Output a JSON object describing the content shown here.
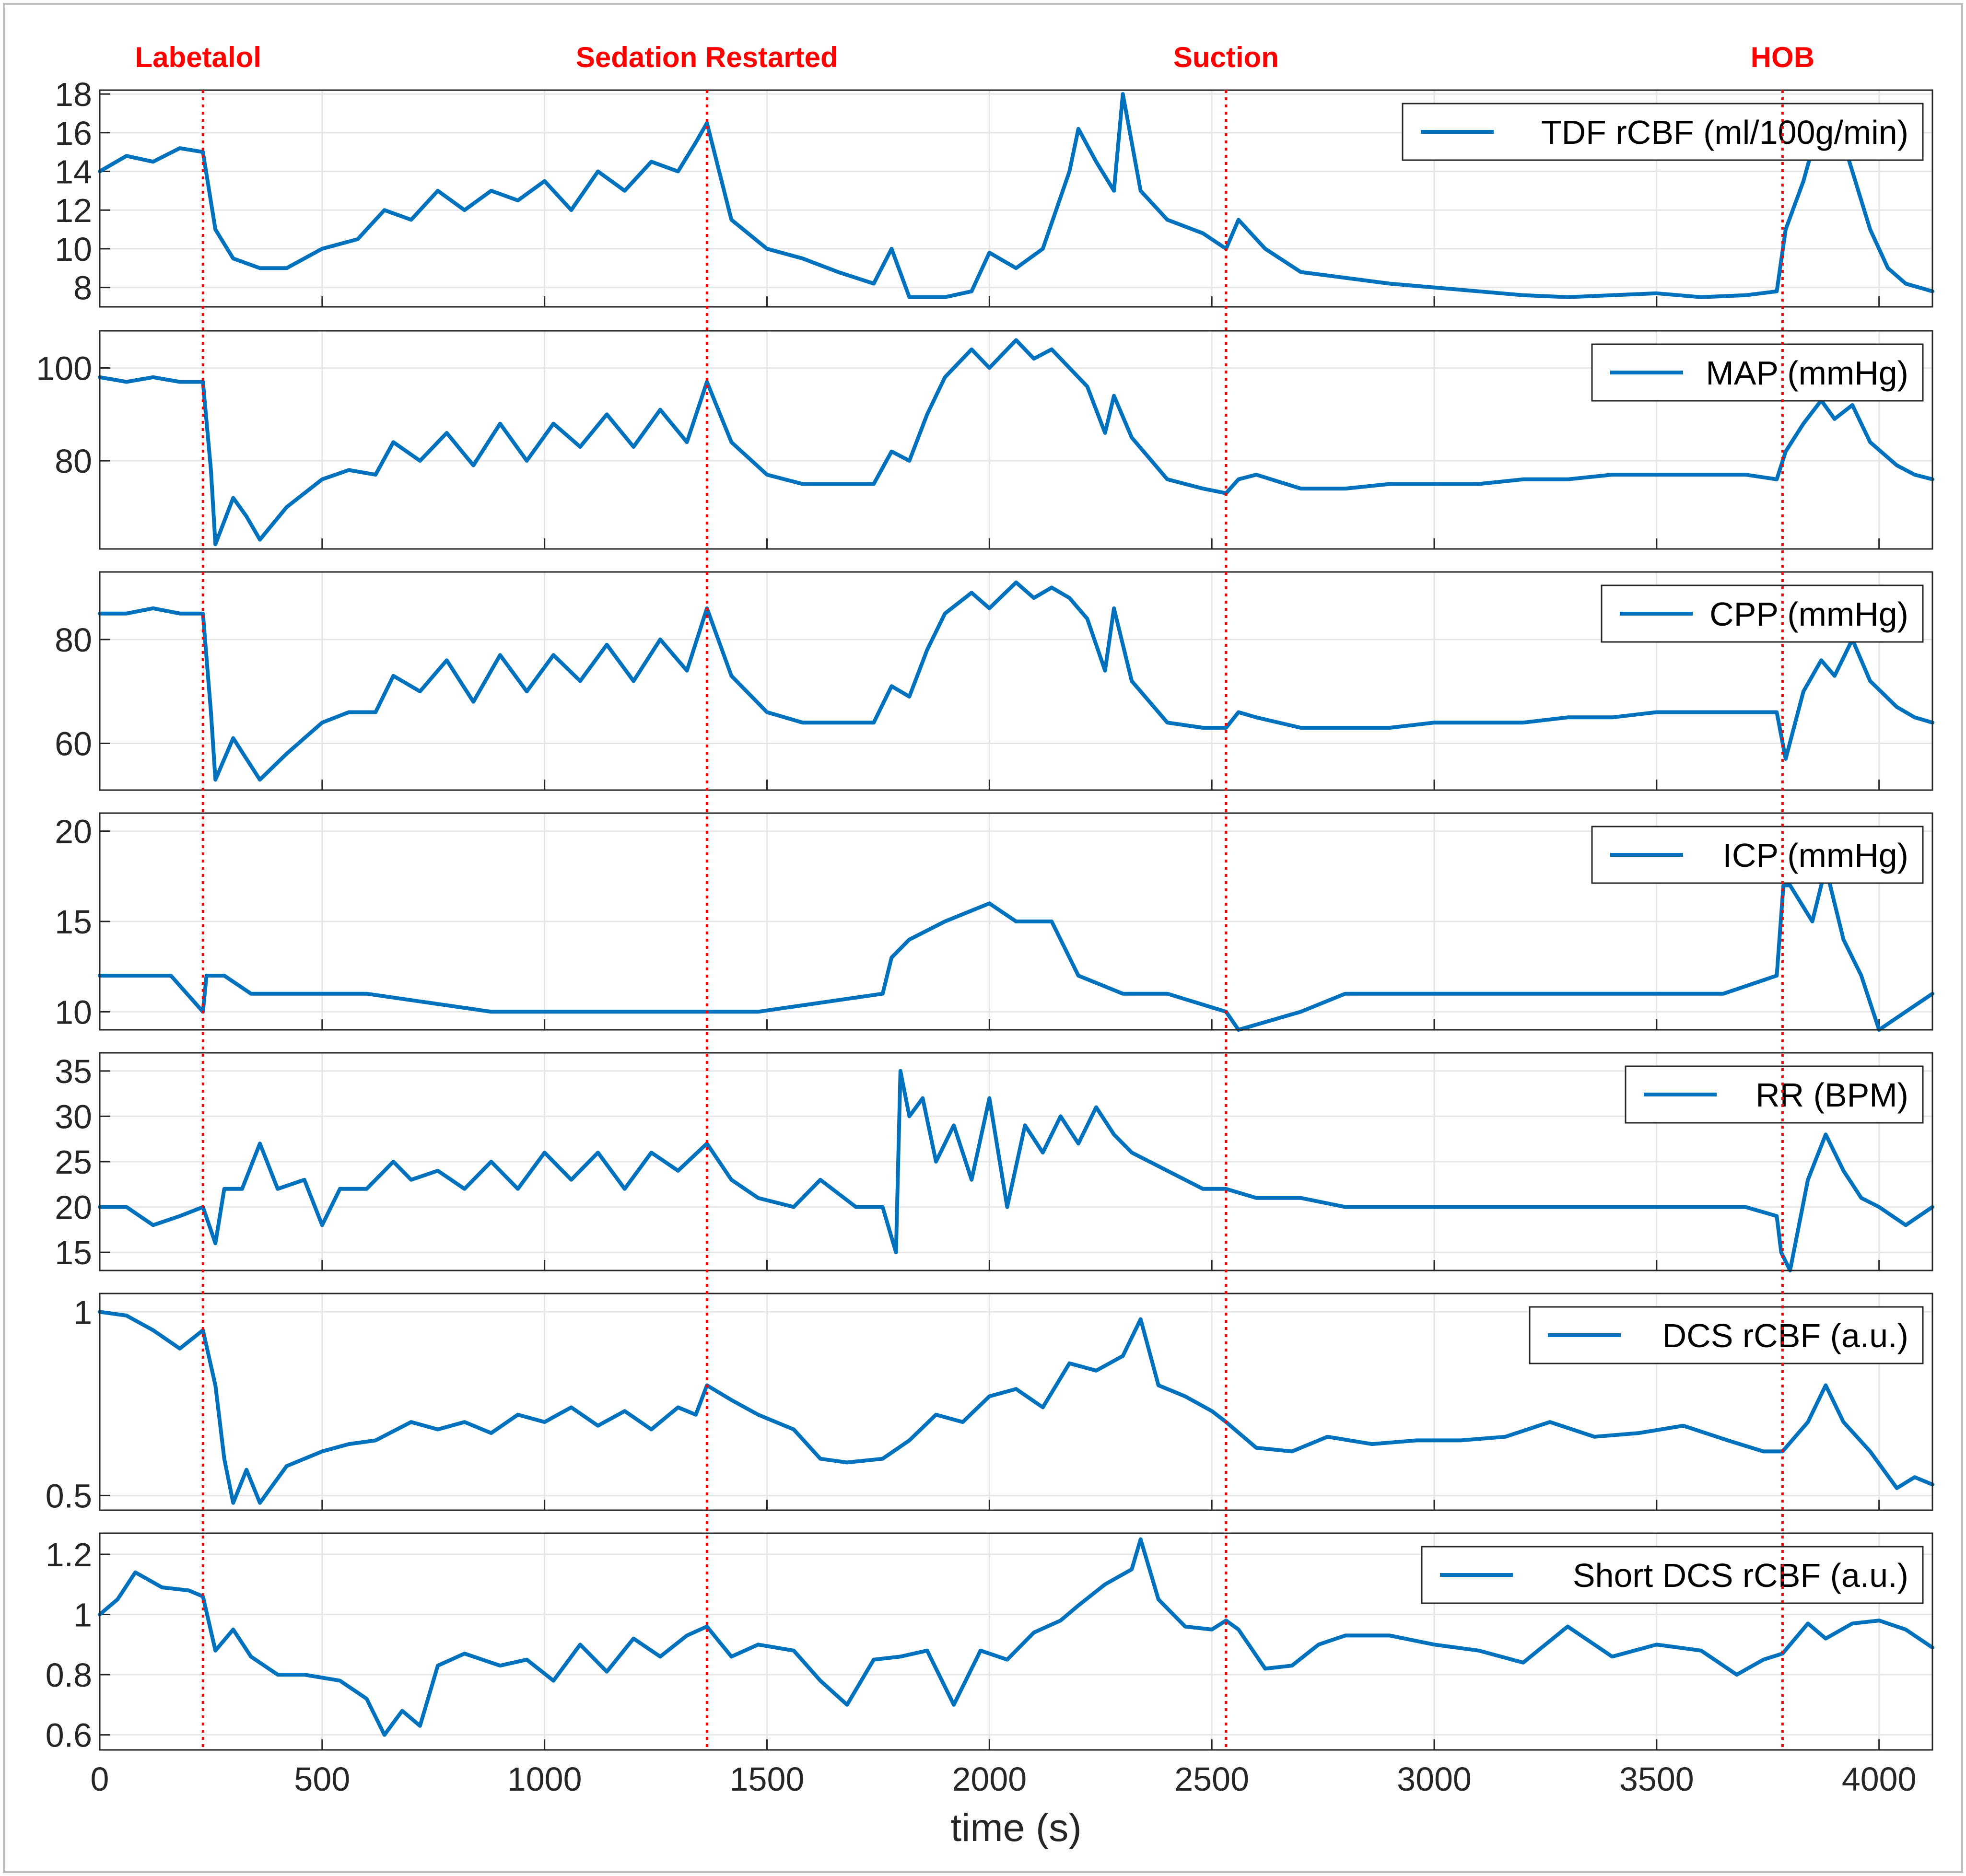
{
  "chart_data": {
    "type": "line",
    "xlabel": "time (s)",
    "xlim": [
      0,
      4120
    ],
    "xticks": [
      0,
      500,
      1000,
      1500,
      2000,
      2500,
      3000,
      3500,
      4000
    ],
    "line_color": "#0072bd",
    "event_color": "#ff0000",
    "events": [
      {
        "label": "Labetalol",
        "x": 232
      },
      {
        "label": "Sedation Restarted",
        "x": 1365
      },
      {
        "label": "Suction",
        "x": 2532
      },
      {
        "label": "HOB",
        "x": 3783
      }
    ],
    "panels": [
      {
        "legend": "TDF rCBF (ml/100g/min)",
        "ylim": [
          7,
          18.2
        ],
        "yticks": [
          8,
          10,
          12,
          14,
          16,
          18
        ],
        "x": [
          0,
          60,
          120,
          180,
          232,
          260,
          300,
          360,
          420,
          500,
          580,
          640,
          700,
          760,
          820,
          880,
          940,
          1000,
          1060,
          1120,
          1180,
          1240,
          1300,
          1340,
          1365,
          1420,
          1500,
          1580,
          1660,
          1740,
          1780,
          1820,
          1900,
          1960,
          2000,
          2060,
          2120,
          2180,
          2200,
          2240,
          2280,
          2300,
          2340,
          2400,
          2480,
          2532,
          2560,
          2620,
          2700,
          2800,
          2900,
          3000,
          3100,
          3200,
          3300,
          3400,
          3500,
          3600,
          3700,
          3770,
          3790,
          3830,
          3860,
          3900,
          3940,
          3980,
          4020,
          4060,
          4120
        ],
        "values": [
          14,
          14.8,
          14.5,
          15.2,
          15,
          11,
          9.5,
          9,
          9,
          10,
          10.5,
          12,
          11.5,
          13,
          12,
          13,
          12.5,
          13.5,
          12,
          14,
          13,
          14.5,
          14,
          15.5,
          16.5,
          11.5,
          10,
          9.5,
          8.8,
          8.2,
          10,
          7.5,
          7.5,
          7.8,
          9.8,
          9,
          10,
          14,
          16.2,
          14.5,
          13,
          18,
          13,
          11.5,
          10.8,
          10,
          11.5,
          10,
          8.8,
          8.5,
          8.2,
          8,
          7.8,
          7.6,
          7.5,
          7.6,
          7.7,
          7.5,
          7.6,
          7.8,
          11,
          13.5,
          16,
          17,
          14,
          11,
          9,
          8.2,
          7.8
        ]
      },
      {
        "legend": "MAP (mmHg)",
        "ylim": [
          61,
          108
        ],
        "yticks": [
          80,
          100
        ],
        "x": [
          0,
          60,
          120,
          180,
          232,
          250,
          260,
          300,
          330,
          360,
          420,
          500,
          560,
          620,
          660,
          720,
          780,
          840,
          900,
          960,
          1020,
          1080,
          1140,
          1200,
          1260,
          1320,
          1365,
          1420,
          1500,
          1580,
          1660,
          1740,
          1780,
          1820,
          1860,
          1900,
          1960,
          2000,
          2060,
          2100,
          2140,
          2180,
          2220,
          2260,
          2280,
          2320,
          2400,
          2480,
          2532,
          2560,
          2600,
          2700,
          2800,
          2900,
          3000,
          3100,
          3200,
          3300,
          3400,
          3500,
          3600,
          3700,
          3770,
          3790,
          3830,
          3870,
          3900,
          3940,
          3980,
          4040,
          4080,
          4120
        ],
        "values": [
          98,
          97,
          98,
          97,
          97,
          78,
          62,
          72,
          68,
          63,
          70,
          76,
          78,
          77,
          84,
          80,
          86,
          79,
          88,
          80,
          88,
          83,
          90,
          83,
          91,
          84,
          97,
          84,
          77,
          75,
          75,
          75,
          82,
          80,
          90,
          98,
          104,
          100,
          106,
          102,
          104,
          100,
          96,
          86,
          94,
          85,
          76,
          74,
          73,
          76,
          77,
          74,
          74,
          75,
          75,
          75,
          76,
          76,
          77,
          77,
          77,
          77,
          76,
          82,
          88,
          93,
          89,
          92,
          84,
          79,
          77,
          76
        ]
      },
      {
        "legend": "CPP (mmHg)",
        "ylim": [
          51,
          93
        ],
        "yticks": [
          60,
          80
        ],
        "x": [
          0,
          60,
          120,
          180,
          232,
          250,
          260,
          300,
          330,
          360,
          420,
          500,
          560,
          620,
          660,
          720,
          780,
          840,
          900,
          960,
          1020,
          1080,
          1140,
          1200,
          1260,
          1320,
          1365,
          1420,
          1500,
          1580,
          1660,
          1740,
          1780,
          1820,
          1860,
          1900,
          1960,
          2000,
          2060,
          2100,
          2140,
          2180,
          2220,
          2260,
          2280,
          2320,
          2400,
          2480,
          2532,
          2560,
          2600,
          2700,
          2800,
          2900,
          3000,
          3100,
          3200,
          3300,
          3400,
          3500,
          3600,
          3700,
          3770,
          3790,
          3830,
          3870,
          3900,
          3940,
          3980,
          4040,
          4080,
          4120
        ],
        "values": [
          85,
          85,
          86,
          85,
          85,
          66,
          53,
          61,
          57,
          53,
          58,
          64,
          66,
          66,
          73,
          70,
          76,
          68,
          77,
          70,
          77,
          72,
          79,
          72,
          80,
          74,
          86,
          73,
          66,
          64,
          64,
          64,
          71,
          69,
          78,
          85,
          89,
          86,
          91,
          88,
          90,
          88,
          84,
          74,
          86,
          72,
          64,
          63,
          63,
          66,
          65,
          63,
          63,
          63,
          64,
          64,
          64,
          65,
          65,
          66,
          66,
          66,
          66,
          57,
          70,
          76,
          73,
          80,
          72,
          67,
          65,
          64
        ]
      },
      {
        "legend": "ICP (mmHg)",
        "ylim": [
          9,
          21
        ],
        "yticks": [
          10,
          15,
          20
        ],
        "x": [
          0,
          100,
          160,
          232,
          240,
          280,
          340,
          600,
          880,
          1100,
          1365,
          1480,
          1760,
          1780,
          1820,
          1900,
          2000,
          2060,
          2140,
          2200,
          2300,
          2400,
          2532,
          2560,
          2700,
          2800,
          3000,
          3200,
          3500,
          3650,
          3770,
          3785,
          3800,
          3850,
          3880,
          3920,
          3960,
          4000,
          4060,
          4120
        ],
        "values": [
          12,
          12,
          12,
          10,
          12,
          12,
          11,
          11,
          10,
          10,
          10,
          10,
          11,
          13,
          14,
          15,
          16,
          15,
          15,
          12,
          11,
          11,
          10,
          9,
          10,
          11,
          11,
          11,
          11,
          11,
          12,
          17,
          17,
          15,
          18,
          14,
          12,
          9,
          10,
          11
        ]
      },
      {
        "legend": "RR (BPM)",
        "ylim": [
          13,
          37
        ],
        "yticks": [
          15,
          20,
          25,
          30,
          35
        ],
        "x": [
          0,
          60,
          120,
          180,
          232,
          260,
          280,
          320,
          360,
          400,
          460,
          500,
          540,
          600,
          660,
          700,
          760,
          820,
          880,
          940,
          1000,
          1060,
          1120,
          1180,
          1240,
          1300,
          1365,
          1420,
          1480,
          1560,
          1620,
          1700,
          1760,
          1790,
          1800,
          1820,
          1850,
          1880,
          1920,
          1960,
          2000,
          2040,
          2080,
          2120,
          2160,
          2200,
          2240,
          2280,
          2320,
          2400,
          2480,
          2532,
          2600,
          2700,
          2800,
          2900,
          3000,
          3100,
          3200,
          3300,
          3400,
          3500,
          3600,
          3700,
          3770,
          3780,
          3800,
          3840,
          3880,
          3920,
          3960,
          4000,
          4060,
          4120
        ],
        "values": [
          20,
          20,
          18,
          19,
          20,
          16,
          22,
          22,
          27,
          22,
          23,
          18,
          22,
          22,
          25,
          23,
          24,
          22,
          25,
          22,
          26,
          23,
          26,
          22,
          26,
          24,
          27,
          23,
          21,
          20,
          23,
          20,
          20,
          15,
          35,
          30,
          32,
          25,
          29,
          23,
          32,
          20,
          29,
          26,
          30,
          27,
          31,
          28,
          26,
          24,
          22,
          22,
          21,
          21,
          20,
          20,
          20,
          20,
          20,
          20,
          20,
          20,
          20,
          20,
          19,
          15,
          13,
          23,
          28,
          24,
          21,
          20,
          18,
          20
        ]
      },
      {
        "legend": "DCS rCBF (a.u.)",
        "ylim": [
          0.46,
          1.05
        ],
        "yticks": [
          0.5,
          1
        ],
        "x": [
          0,
          60,
          120,
          180,
          232,
          260,
          280,
          300,
          330,
          360,
          420,
          500,
          560,
          620,
          700,
          760,
          820,
          880,
          940,
          1000,
          1060,
          1120,
          1180,
          1240,
          1300,
          1340,
          1365,
          1420,
          1480,
          1560,
          1620,
          1680,
          1760,
          1820,
          1880,
          1940,
          2000,
          2060,
          2120,
          2180,
          2240,
          2300,
          2340,
          2380,
          2440,
          2500,
          2532,
          2600,
          2680,
          2760,
          2860,
          2960,
          3060,
          3160,
          3260,
          3360,
          3460,
          3560,
          3660,
          3740,
          3783,
          3840,
          3880,
          3920,
          3980,
          4040,
          4080,
          4120
        ],
        "values": [
          1.0,
          0.99,
          0.95,
          0.9,
          0.95,
          0.8,
          0.6,
          0.48,
          0.57,
          0.48,
          0.58,
          0.62,
          0.64,
          0.65,
          0.7,
          0.68,
          0.7,
          0.67,
          0.72,
          0.7,
          0.74,
          0.69,
          0.73,
          0.68,
          0.74,
          0.72,
          0.8,
          0.76,
          0.72,
          0.68,
          0.6,
          0.59,
          0.6,
          0.65,
          0.72,
          0.7,
          0.77,
          0.79,
          0.74,
          0.86,
          0.84,
          0.88,
          0.98,
          0.8,
          0.77,
          0.73,
          0.7,
          0.63,
          0.62,
          0.66,
          0.64,
          0.65,
          0.65,
          0.66,
          0.7,
          0.66,
          0.67,
          0.69,
          0.65,
          0.62,
          0.62,
          0.7,
          0.8,
          0.7,
          0.62,
          0.52,
          0.55,
          0.53
        ]
      },
      {
        "legend": "Short DCS rCBF (a.u.)",
        "ylim": [
          0.55,
          1.27
        ],
        "yticks": [
          0.6,
          0.8,
          1,
          1.2
        ],
        "x": [
          0,
          40,
          80,
          140,
          200,
          232,
          260,
          300,
          340,
          400,
          460,
          540,
          600,
          640,
          680,
          720,
          760,
          820,
          900,
          960,
          1020,
          1080,
          1140,
          1200,
          1260,
          1320,
          1365,
          1420,
          1480,
          1560,
          1620,
          1680,
          1740,
          1800,
          1860,
          1920,
          1980,
          2040,
          2100,
          2160,
          2200,
          2260,
          2320,
          2340,
          2380,
          2440,
          2500,
          2532,
          2560,
          2620,
          2680,
          2740,
          2800,
          2900,
          3000,
          3100,
          3200,
          3300,
          3400,
          3500,
          3600,
          3680,
          3740,
          3783,
          3840,
          3880,
          3940,
          4000,
          4060,
          4120
        ],
        "values": [
          1.0,
          1.05,
          1.14,
          1.09,
          1.08,
          1.06,
          0.88,
          0.95,
          0.86,
          0.8,
          0.8,
          0.78,
          0.72,
          0.6,
          0.68,
          0.63,
          0.83,
          0.87,
          0.83,
          0.85,
          0.78,
          0.9,
          0.81,
          0.92,
          0.86,
          0.93,
          0.96,
          0.86,
          0.9,
          0.88,
          0.78,
          0.7,
          0.85,
          0.86,
          0.88,
          0.7,
          0.88,
          0.85,
          0.94,
          0.98,
          1.03,
          1.1,
          1.15,
          1.25,
          1.05,
          0.96,
          0.95,
          0.98,
          0.95,
          0.82,
          0.83,
          0.9,
          0.93,
          0.93,
          0.9,
          0.88,
          0.84,
          0.96,
          0.86,
          0.9,
          0.88,
          0.8,
          0.85,
          0.87,
          0.97,
          0.92,
          0.97,
          0.98,
          0.95,
          0.89
        ]
      }
    ]
  }
}
